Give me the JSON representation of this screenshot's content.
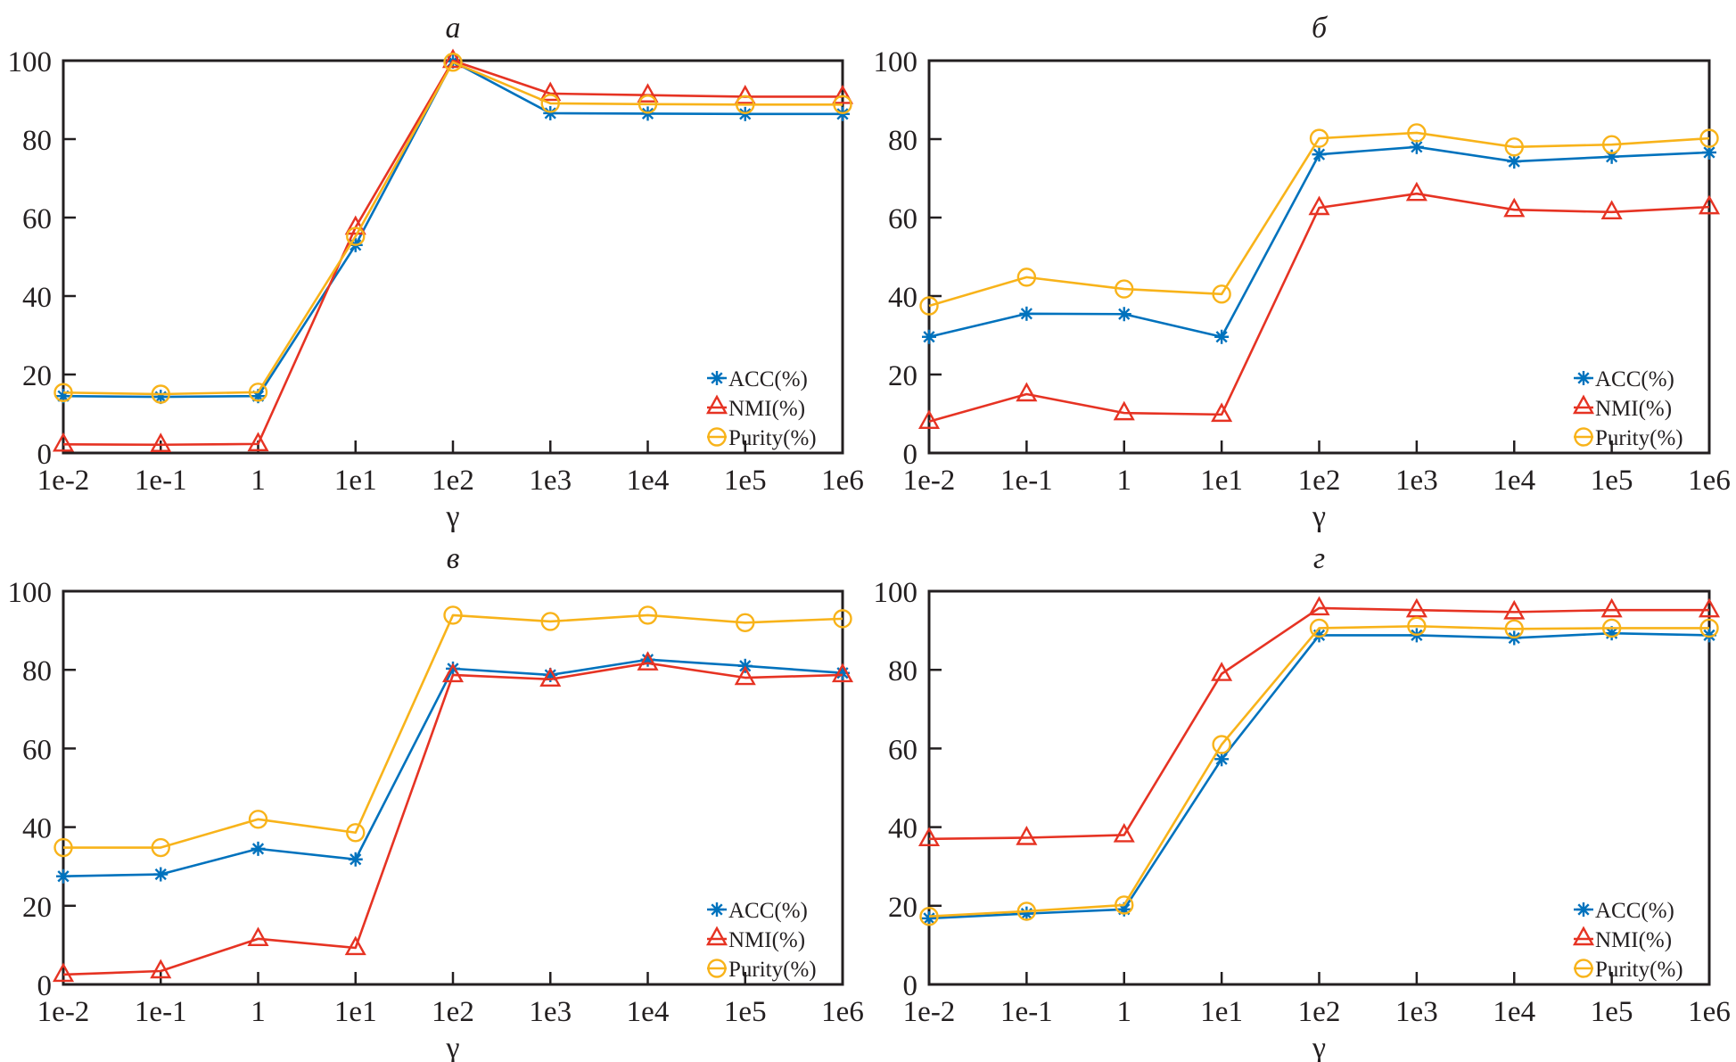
{
  "chart_data": [
    {
      "type": "line",
      "title": "а",
      "xlabel": "γ",
      "ylabel": "",
      "categories": [
        "1e-2",
        "1e-1",
        "1",
        "1e1",
        "1e2",
        "1e3",
        "1e4",
        "1e5",
        "1e6"
      ],
      "ylim": [
        0,
        100
      ],
      "yticks": [
        0,
        20,
        40,
        60,
        80,
        100
      ],
      "legend_position": "bottom-right",
      "grid": false,
      "series": [
        {
          "name": "ACC(%)",
          "marker": "asterisk",
          "color": "#0072BD",
          "values": [
            14.5,
            14.3,
            14.5,
            53.0,
            99.8,
            86.6,
            86.5,
            86.4,
            86.4
          ]
        },
        {
          "name": "NMI(%)",
          "marker": "triangle",
          "color": "#E63323",
          "values": [
            2.2,
            2.1,
            2.3,
            57.5,
            100.0,
            91.6,
            91.2,
            90.8,
            90.8
          ]
        },
        {
          "name": "Purity(%)",
          "marker": "circle",
          "color": "#F8B31A",
          "values": [
            15.4,
            15.0,
            15.5,
            55.2,
            99.6,
            89.1,
            88.9,
            88.8,
            88.8
          ]
        }
      ]
    },
    {
      "type": "line",
      "title": "б",
      "xlabel": "γ",
      "ylabel": "",
      "categories": [
        "1e-2",
        "1e-1",
        "1",
        "1e1",
        "1e2",
        "1e3",
        "1e4",
        "1e5",
        "1e6"
      ],
      "ylim": [
        0,
        100
      ],
      "yticks": [
        0,
        20,
        40,
        60,
        80,
        100
      ],
      "legend_position": "bottom-right",
      "grid": false,
      "series": [
        {
          "name": "ACC(%)",
          "marker": "asterisk",
          "color": "#0072BD",
          "values": [
            29.6,
            35.5,
            35.4,
            29.6,
            76.1,
            78.0,
            74.3,
            75.5,
            76.6
          ]
        },
        {
          "name": "NMI(%)",
          "marker": "triangle",
          "color": "#E63323",
          "values": [
            8.0,
            15.0,
            10.2,
            9.8,
            62.5,
            66.1,
            62.0,
            61.4,
            62.7
          ]
        },
        {
          "name": "Purity(%)",
          "marker": "circle",
          "color": "#F8B31A",
          "values": [
            37.5,
            44.8,
            41.8,
            40.5,
            80.2,
            81.6,
            78.0,
            78.6,
            80.2
          ]
        }
      ]
    },
    {
      "type": "line",
      "title": "в",
      "xlabel": "γ",
      "ylabel": "",
      "categories": [
        "1e-2",
        "1e-1",
        "1",
        "1e1",
        "1e2",
        "1e3",
        "1e4",
        "1e5",
        "1e6"
      ],
      "ylim": [
        0,
        100
      ],
      "yticks": [
        0,
        20,
        40,
        60,
        80,
        100
      ],
      "legend_position": "bottom-right",
      "grid": false,
      "series": [
        {
          "name": "ACC(%)",
          "marker": "asterisk",
          "color": "#0072BD",
          "values": [
            27.5,
            28.0,
            34.5,
            31.8,
            80.3,
            78.7,
            82.6,
            81.0,
            79.2
          ]
        },
        {
          "name": "NMI(%)",
          "marker": "triangle",
          "color": "#E63323",
          "values": [
            2.5,
            3.4,
            11.6,
            9.3,
            78.7,
            77.6,
            81.7,
            78.0,
            78.7
          ]
        },
        {
          "name": "Purity(%)",
          "marker": "circle",
          "color": "#F8B31A",
          "values": [
            34.8,
            34.8,
            42.0,
            38.6,
            93.9,
            92.3,
            93.9,
            92.0,
            93.0
          ]
        }
      ]
    },
    {
      "type": "line",
      "title": "г",
      "xlabel": "γ",
      "ylabel": "",
      "categories": [
        "1e-2",
        "1e-1",
        "1",
        "1e1",
        "1e2",
        "1e3",
        "1e4",
        "1e5",
        "1e6"
      ],
      "ylim": [
        0,
        100
      ],
      "yticks": [
        0,
        20,
        40,
        60,
        80,
        100
      ],
      "legend_position": "bottom-right",
      "grid": false,
      "series": [
        {
          "name": "ACC(%)",
          "marker": "asterisk",
          "color": "#0072BD",
          "values": [
            16.8,
            18.0,
            19.1,
            57.3,
            88.8,
            88.8,
            88.1,
            89.3,
            88.8
          ]
        },
        {
          "name": "NMI(%)",
          "marker": "triangle",
          "color": "#E63323",
          "values": [
            37.0,
            37.3,
            38.0,
            79.0,
            95.7,
            95.2,
            94.7,
            95.2,
            95.2
          ]
        },
        {
          "name": "Purity(%)",
          "marker": "circle",
          "color": "#F8B31A",
          "values": [
            17.3,
            18.6,
            20.2,
            61.0,
            90.6,
            91.1,
            90.4,
            90.6,
            90.6
          ]
        }
      ]
    }
  ]
}
